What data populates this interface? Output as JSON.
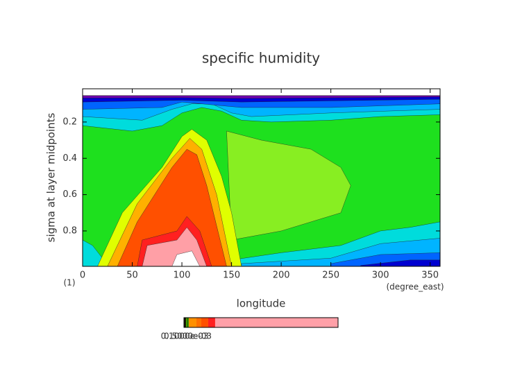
{
  "chart_data": {
    "type": "contour",
    "title": "specific humidity",
    "x_label": "longitude",
    "y_label": "sigma at layer midpoints",
    "x_units": "(degree_east)",
    "y_units": "(1)",
    "xlim": [
      0,
      360
    ],
    "ylim": [
      0.017,
      0.995
    ],
    "y_inverted": true,
    "xticks": [
      0,
      50,
      100,
      150,
      200,
      250,
      300,
      350
    ],
    "yticks": [
      0.2,
      0.4,
      0.6,
      0.8
    ],
    "background": "#1ee01e",
    "regions": [
      {
        "color": "#ffffff",
        "points": [
          [
            0,
            0.017
          ],
          [
            360,
            0.017
          ],
          [
            360,
            0.055
          ],
          [
            0,
            0.055
          ]
        ]
      },
      {
        "color": "#00dcdc",
        "points": [
          [
            0,
            0.055
          ],
          [
            360,
            0.055
          ],
          [
            360,
            0.16
          ],
          [
            300,
            0.17
          ],
          [
            250,
            0.19
          ],
          [
            190,
            0.2
          ],
          [
            160,
            0.19
          ],
          [
            140,
            0.14
          ],
          [
            120,
            0.12
          ],
          [
            100,
            0.15
          ],
          [
            80,
            0.22
          ],
          [
            50,
            0.25
          ],
          [
            0,
            0.22
          ]
        ]
      },
      {
        "color": "#00b4ff",
        "points": [
          [
            0,
            0.055
          ],
          [
            360,
            0.055
          ],
          [
            360,
            0.13
          ],
          [
            250,
            0.15
          ],
          [
            170,
            0.17
          ],
          [
            150,
            0.15
          ],
          [
            130,
            0.1
          ],
          [
            110,
            0.1
          ],
          [
            90,
            0.13
          ],
          [
            60,
            0.19
          ],
          [
            0,
            0.17
          ]
        ]
      },
      {
        "color": "#0064ff",
        "points": [
          [
            0,
            0.055
          ],
          [
            360,
            0.055
          ],
          [
            360,
            0.1
          ],
          [
            250,
            0.12
          ],
          [
            160,
            0.12
          ],
          [
            100,
            0.09
          ],
          [
            80,
            0.12
          ],
          [
            0,
            0.13
          ]
        ]
      },
      {
        "color": "#0000d0",
        "points": [
          [
            0,
            0.055
          ],
          [
            360,
            0.055
          ],
          [
            360,
            0.075
          ],
          [
            160,
            0.09
          ],
          [
            100,
            0.08
          ],
          [
            0,
            0.09
          ]
        ]
      },
      {
        "color": "#7000b0",
        "points": [
          [
            0,
            0.055
          ],
          [
            360,
            0.055
          ],
          [
            360,
            0.062
          ],
          [
            160,
            0.07
          ],
          [
            100,
            0.066
          ],
          [
            0,
            0.068
          ]
        ]
      },
      {
        "color": "#88ee22",
        "points": [
          [
            145,
            0.25
          ],
          [
            180,
            0.3
          ],
          [
            230,
            0.35
          ],
          [
            260,
            0.45
          ],
          [
            270,
            0.55
          ],
          [
            260,
            0.7
          ],
          [
            200,
            0.8
          ],
          [
            150,
            0.85
          ]
        ]
      },
      {
        "color": "#00dcdc",
        "points": [
          [
            0,
            0.85
          ],
          [
            10,
            0.88
          ],
          [
            20,
            0.95
          ],
          [
            22,
            0.995
          ],
          [
            0,
            0.995
          ]
        ]
      },
      {
        "color": "#00dcdc",
        "points": [
          [
            150,
            0.995
          ],
          [
            150,
            0.96
          ],
          [
            200,
            0.92
          ],
          [
            260,
            0.88
          ],
          [
            300,
            0.8
          ],
          [
            330,
            0.78
          ],
          [
            360,
            0.75
          ],
          [
            360,
            0.995
          ]
        ]
      },
      {
        "color": "#00b4ff",
        "points": [
          [
            160,
            0.995
          ],
          [
            160,
            0.98
          ],
          [
            250,
            0.95
          ],
          [
            300,
            0.87
          ],
          [
            340,
            0.85
          ],
          [
            360,
            0.84
          ],
          [
            360,
            0.995
          ]
        ]
      },
      {
        "color": "#0064ff",
        "points": [
          [
            250,
            0.995
          ],
          [
            250,
            0.98
          ],
          [
            300,
            0.93
          ],
          [
            360,
            0.92
          ],
          [
            360,
            0.995
          ]
        ]
      },
      {
        "color": "#0000d0",
        "points": [
          [
            280,
            0.995
          ],
          [
            280,
            0.99
          ],
          [
            330,
            0.96
          ],
          [
            360,
            0.96
          ],
          [
            360,
            0.995
          ]
        ]
      },
      {
        "color": "#e0ff00",
        "points": [
          [
            15,
            0.995
          ],
          [
            40,
            0.7
          ],
          [
            80,
            0.45
          ],
          [
            100,
            0.28
          ],
          [
            110,
            0.24
          ],
          [
            125,
            0.3
          ],
          [
            140,
            0.5
          ],
          [
            150,
            0.7
          ],
          [
            160,
            0.995
          ]
        ]
      },
      {
        "color": "#ffb000",
        "points": [
          [
            25,
            0.995
          ],
          [
            55,
            0.65
          ],
          [
            90,
            0.4
          ],
          [
            108,
            0.29
          ],
          [
            120,
            0.35
          ],
          [
            135,
            0.6
          ],
          [
            150,
            0.995
          ]
        ]
      },
      {
        "color": "#ff5000",
        "points": [
          [
            35,
            0.995
          ],
          [
            55,
            0.75
          ],
          [
            90,
            0.45
          ],
          [
            105,
            0.35
          ],
          [
            115,
            0.38
          ],
          [
            125,
            0.55
          ],
          [
            145,
            0.995
          ]
        ]
      },
      {
        "color": "#ff2020",
        "points": [
          [
            55,
            0.995
          ],
          [
            60,
            0.85
          ],
          [
            95,
            0.8
          ],
          [
            105,
            0.72
          ],
          [
            118,
            0.8
          ],
          [
            130,
            0.995
          ]
        ]
      },
      {
        "color": "#ff9fa6",
        "points": [
          [
            60,
            0.995
          ],
          [
            65,
            0.88
          ],
          [
            95,
            0.85
          ],
          [
            105,
            0.78
          ],
          [
            115,
            0.85
          ],
          [
            125,
            0.995
          ]
        ]
      },
      {
        "color": "#ffffff",
        "points": [
          [
            90,
            0.995
          ],
          [
            95,
            0.93
          ],
          [
            110,
            0.91
          ],
          [
            118,
            0.995
          ]
        ]
      }
    ],
    "colorbar": {
      "levels": [
        0,
        0.00027,
        0.00063,
        0.00162,
        0.00225,
        0.00315,
        0.00405,
        0.02
      ],
      "colors": [
        "#202000",
        "#40a000",
        "#ff9000",
        "#ff7000",
        "#ff5000",
        "#ff2020",
        "#ffa0a8"
      ],
      "ticks": [
        {
          "value": 0.0005,
          "label": "0.5000e-03"
        },
        {
          "value": 0.0001,
          "label": "0.1000e-03"
        }
      ]
    }
  }
}
